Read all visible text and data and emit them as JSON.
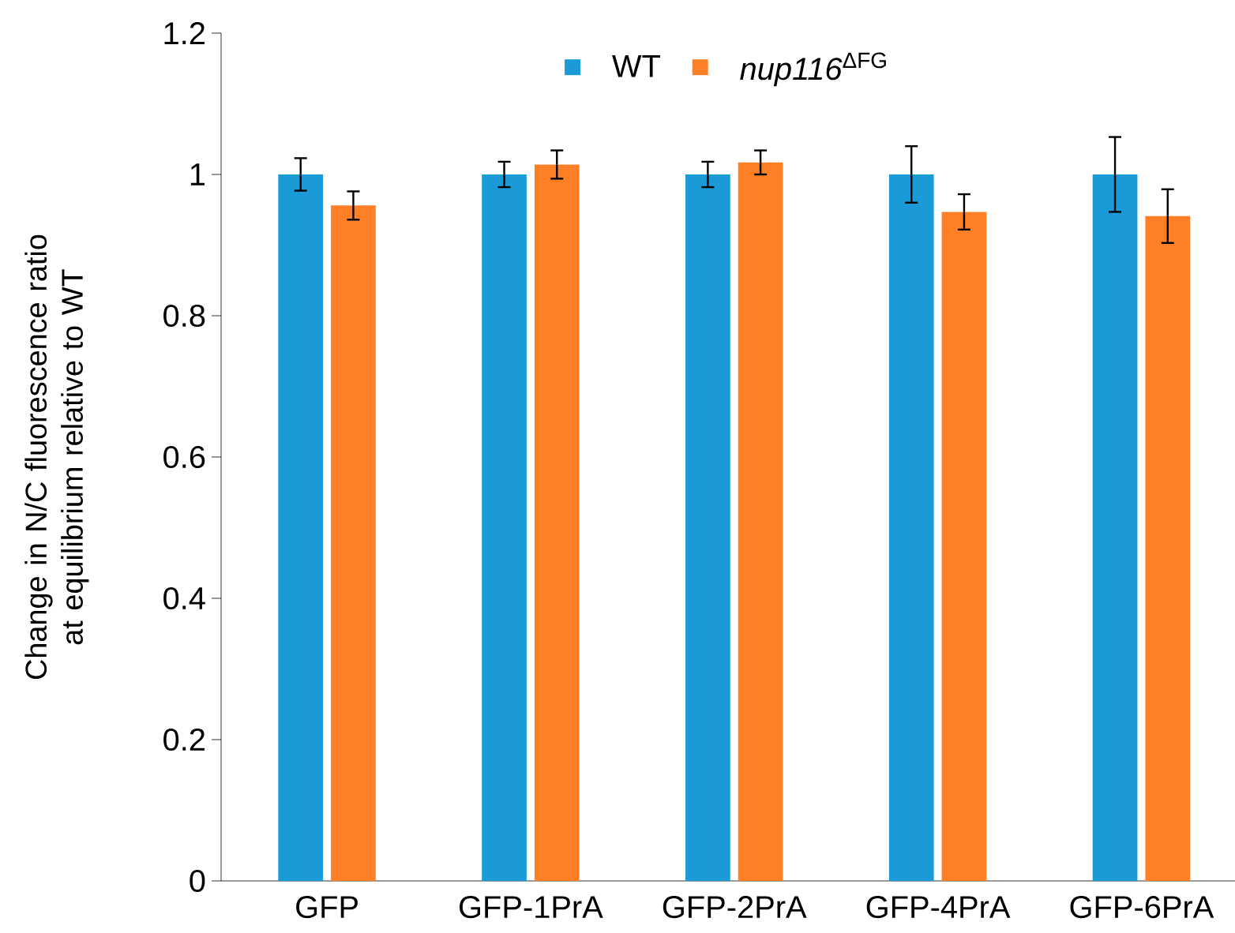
{
  "chart_data": {
    "type": "bar",
    "ylabel": "Change in N/C fluorescence ratio at equilibrium relative to WT",
    "categories": [
      "GFP",
      "GFP-1PrA",
      "GFP-2PrA",
      "GFP-4PrA",
      "GFP-6PrA"
    ],
    "series": [
      {
        "name": "WT",
        "color": "#1a9bd7",
        "values": [
          1.0,
          1.0,
          1.0,
          1.0,
          1.0
        ],
        "errors": [
          0.023,
          0.018,
          0.018,
          0.04,
          0.053
        ]
      },
      {
        "name": "*nup116*$^{ΔFG}$",
        "color": "#ff7f27",
        "values": [
          0.956,
          1.014,
          1.017,
          0.947,
          0.941
        ],
        "errors": [
          0.02,
          0.02,
          0.017,
          0.025,
          0.038
        ]
      }
    ],
    "ylim": [
      0,
      1.2
    ],
    "yticks": [
      0,
      0.2,
      0.4,
      0.6,
      0.8,
      1,
      1.2
    ],
    "grid": false,
    "legend": "top"
  }
}
